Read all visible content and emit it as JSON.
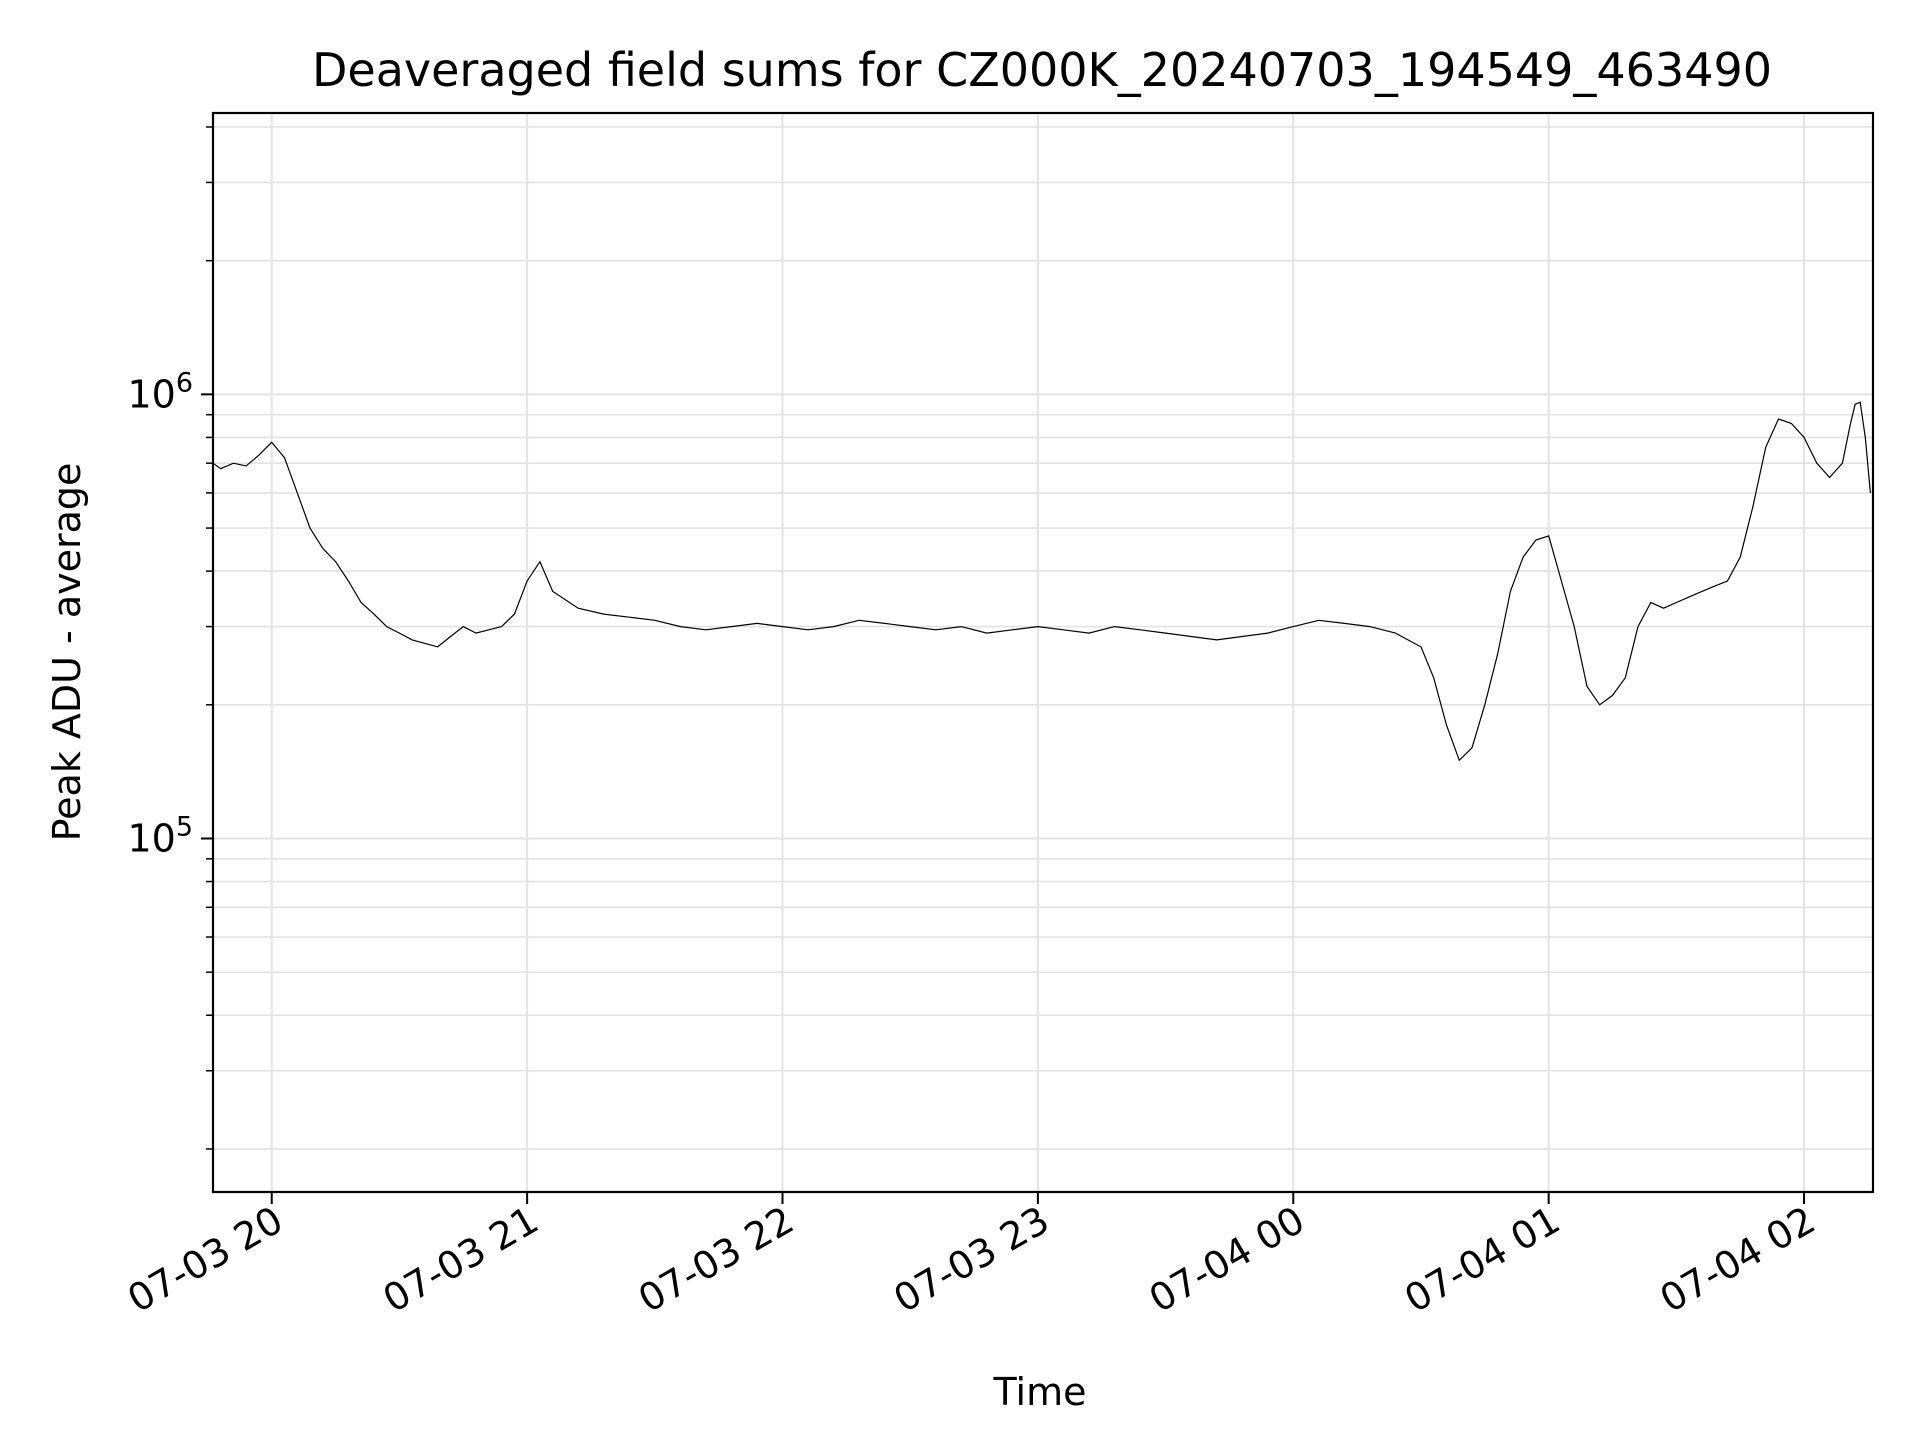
{
  "chart_data": {
    "type": "line",
    "title": "Deaveraged field sums for CZ000K_20240703_194549_463490",
    "xlabel": "Time",
    "ylabel": "Peak ADU - average",
    "x_tick_labels": [
      "07-03 20",
      "07-03 21",
      "07-03 22",
      "07-03 23",
      "07-04 00",
      "07-04 01",
      "07-04 02"
    ],
    "x_ticks_hours": [
      20,
      21,
      22,
      23,
      24,
      25,
      26
    ],
    "xlim_hours": [
      19.77,
      26.27
    ],
    "y_scale": "log",
    "ylim": [
      16000,
      4300000
    ],
    "y_major_ticks": [
      {
        "value": 100000,
        "base": "10",
        "exp": "5"
      },
      {
        "value": 1000000,
        "base": "10",
        "exp": "6"
      }
    ],
    "grid": true,
    "line_color": "#000000",
    "series": [
      {
        "x_hours": [
          19.77,
          19.8,
          19.85,
          19.9,
          19.95,
          20.0,
          20.05,
          20.1,
          20.15,
          20.2,
          20.25,
          20.3,
          20.35,
          20.4,
          20.45,
          20.5,
          20.55,
          20.6,
          20.65,
          20.7,
          20.75,
          20.8,
          20.85,
          20.9,
          20.95,
          21.0,
          21.05,
          21.1,
          21.2,
          21.3,
          21.4,
          21.5,
          21.6,
          21.7,
          21.8,
          21.9,
          22.0,
          22.1,
          22.2,
          22.3,
          22.4,
          22.5,
          22.6,
          22.7,
          22.8,
          22.9,
          23.0,
          23.1,
          23.2,
          23.3,
          23.4,
          23.5,
          23.6,
          23.7,
          23.8,
          23.9,
          24.0,
          24.1,
          24.2,
          24.3,
          24.4,
          24.5,
          24.55,
          24.6,
          24.65,
          24.7,
          24.75,
          24.8,
          24.85,
          24.9,
          24.95,
          25.0,
          25.05,
          25.1,
          25.15,
          25.2,
          25.25,
          25.3,
          25.35,
          25.4,
          25.45,
          25.5,
          25.55,
          25.6,
          25.65,
          25.7,
          25.75,
          25.8,
          25.85,
          25.9,
          25.95,
          26.0,
          26.05,
          26.1,
          26.15,
          26.18,
          26.2,
          26.22,
          26.24,
          26.26
        ],
        "values": [
          700000,
          680000,
          700000,
          690000,
          730000,
          780000,
          720000,
          600000,
          500000,
          450000,
          420000,
          380000,
          340000,
          320000,
          300000,
          290000,
          280000,
          275000,
          270000,
          285000,
          300000,
          290000,
          295000,
          300000,
          320000,
          380000,
          420000,
          360000,
          330000,
          320000,
          315000,
          310000,
          300000,
          295000,
          300000,
          305000,
          300000,
          295000,
          300000,
          310000,
          305000,
          300000,
          295000,
          300000,
          290000,
          295000,
          300000,
          295000,
          290000,
          300000,
          295000,
          290000,
          285000,
          280000,
          285000,
          290000,
          300000,
          310000,
          305000,
          300000,
          290000,
          270000,
          230000,
          180000,
          150000,
          160000,
          200000,
          260000,
          360000,
          430000,
          470000,
          480000,
          380000,
          300000,
          220000,
          200000,
          210000,
          230000,
          300000,
          340000,
          330000,
          340000,
          350000,
          360000,
          370000,
          380000,
          430000,
          560000,
          760000,
          880000,
          860000,
          800000,
          700000,
          650000,
          700000,
          850000,
          950000,
          960000,
          800000,
          600000
        ]
      }
    ]
  }
}
